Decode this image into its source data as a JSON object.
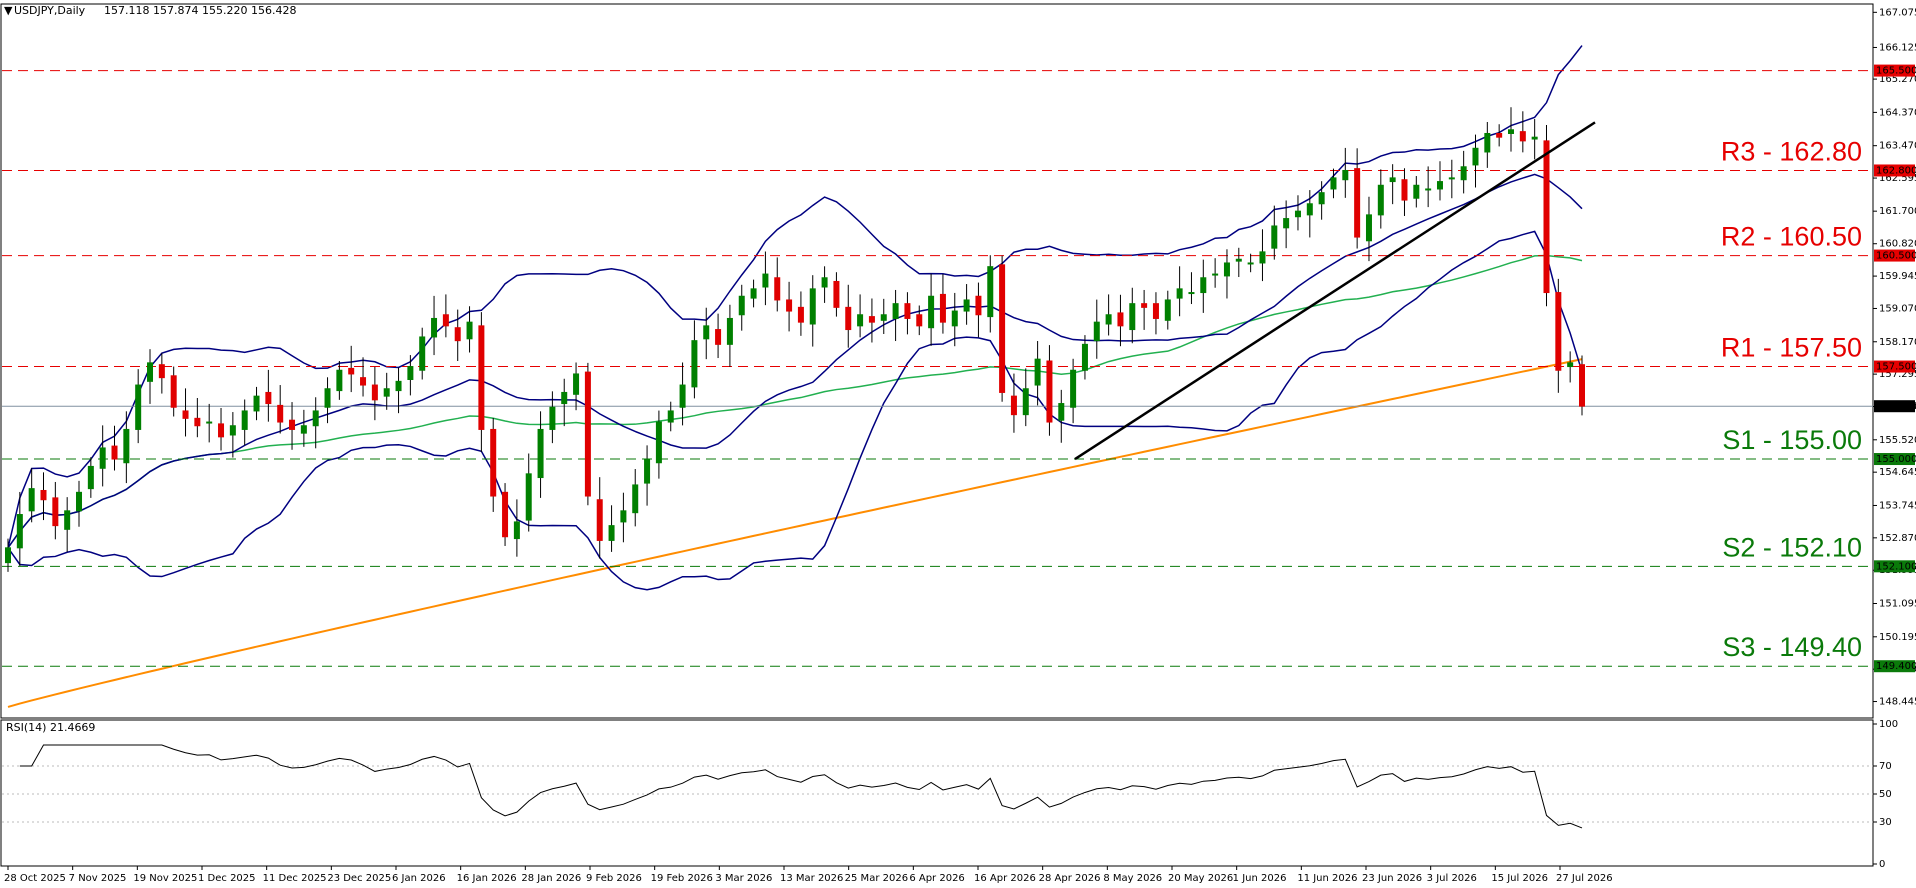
{
  "header": {
    "symbol_period": "USDJPY,Daily",
    "ohlc": "157.118 157.874 155.220 156.428"
  },
  "rsi_header": "RSI(14) 21.4669",
  "colors": {
    "resistance": "#e60000",
    "support": "#0a7a0a",
    "bollinger": "#000080",
    "ma_green": "#22b050",
    "ma_orange": "#ff8c00",
    "trendline": "#000000",
    "candle_up": "#008000",
    "candle_down": "#e00000",
    "current_price_line": "#8090a0"
  },
  "chart_data": [
    {
      "type": "candlestick",
      "title": "USDJPY,Daily",
      "ylim": [
        148.0,
        167.3
      ],
      "y_ticks": [
        "167.075",
        "166.125",
        "165.270",
        "164.370",
        "163.470",
        "162.595",
        "161.700",
        "160.820",
        "159.945",
        "159.070",
        "158.170",
        "157.295",
        "156.420",
        "155.520",
        "154.645",
        "153.745",
        "152.870",
        "151.995",
        "151.095",
        "150.195",
        "149.320",
        "148.445"
      ],
      "x_tick_labels": [
        "28 Oct 2025",
        "7 Nov 2025",
        "19 Nov 2025",
        "1 Dec 2025",
        "11 Dec 2025",
        "23 Dec 2025",
        "6 Jan 2026",
        "16 Jan 2026",
        "28 Jan 2026",
        "9 Feb 2026",
        "19 Feb 2026",
        "3 Mar 2026",
        "13 Mar 2026",
        "25 Mar 2026",
        "6 Apr 2026",
        "16 Apr 2026",
        "28 Apr 2026",
        "8 May 2026",
        "20 May 2026",
        "1 Jun 2026",
        "11 Jun 2026",
        "23 Jun 2026",
        "3 Jul 2026",
        "15 Jul 2026",
        "27 Jul 2026"
      ],
      "close_series": [
        152.6,
        153.5,
        154.2,
        153.9,
        153.2,
        153.6,
        154.1,
        154.8,
        155.3,
        155.0,
        155.8,
        157.0,
        157.6,
        157.2,
        156.4,
        156.1,
        155.9,
        156.0,
        155.6,
        155.9,
        156.3,
        156.7,
        156.5,
        156.0,
        155.8,
        155.9,
        156.3,
        156.9,
        157.4,
        157.3,
        157.0,
        156.6,
        156.9,
        157.1,
        157.5,
        158.3,
        158.8,
        158.6,
        158.2,
        158.7,
        155.8,
        154.0,
        152.9,
        153.3,
        154.6,
        155.8,
        156.4,
        156.8,
        157.3,
        154.0,
        152.8,
        153.2,
        153.6,
        154.3,
        155.0,
        156.0,
        156.3,
        157.0,
        158.2,
        158.6,
        158.1,
        158.8,
        159.4,
        159.6,
        160.0,
        159.3,
        159.0,
        158.7,
        159.6,
        159.9,
        159.1,
        158.5,
        158.9,
        158.7,
        158.9,
        159.2,
        158.8,
        158.6,
        159.4,
        158.7,
        159.0,
        159.3,
        158.9,
        160.2,
        156.8,
        156.2,
        156.9,
        157.7,
        156.0,
        156.5,
        157.4,
        158.1,
        158.7,
        158.9,
        158.6,
        159.2,
        159.1,
        158.8,
        159.3,
        159.6,
        159.5,
        159.9,
        160.0,
        160.3,
        160.4,
        160.3,
        160.6,
        161.3,
        161.5,
        161.7,
        161.9,
        162.2,
        162.6,
        162.8,
        161.0,
        161.6,
        162.4,
        162.6,
        162.0,
        162.4,
        162.3,
        162.5,
        162.6,
        162.9,
        163.4,
        163.8,
        163.7,
        163.9,
        163.6,
        163.7,
        159.5,
        157.4,
        157.6,
        156.43
      ],
      "levels": [
        {
          "name": "R3",
          "price": 162.8,
          "label": "R3 - 162.80",
          "tag": "162.800",
          "kind": "resistance"
        },
        {
          "name": "R2",
          "price": 160.5,
          "label": "R2 - 160.50",
          "tag": "160.500",
          "kind": "resistance"
        },
        {
          "name": "R1",
          "price": 157.5,
          "label": "R1 - 157.50",
          "tag": "157.500",
          "kind": "resistance"
        },
        {
          "name": "S1",
          "price": 155.0,
          "label": "S1 - 155.00",
          "tag": "155.000",
          "kind": "support"
        },
        {
          "name": "S2",
          "price": 152.1,
          "label": "S2 - 152.10",
          "tag": "152.100",
          "kind": "support"
        },
        {
          "name": "S3",
          "price": 149.4,
          "label": "S3 - 149.40",
          "tag": "149.400",
          "kind": "support"
        },
        {
          "name": "R4",
          "price": 165.5,
          "label": "",
          "tag": "165.500",
          "kind": "resistance"
        }
      ],
      "current_price": {
        "price": 156.428,
        "tag": "156.428"
      },
      "bollinger_bands": true,
      "moving_averages": [
        "green",
        "orange"
      ],
      "trendline": {
        "from": {
          "date": "8 May 2026",
          "price": 155.0
        },
        "to": {
          "date": "after 27 Jul 2026",
          "price": 164.1
        }
      }
    },
    {
      "type": "line",
      "title": "RSI(14) 21.4669",
      "ylim": [
        0,
        100
      ],
      "y_ticks": [
        "100",
        "70",
        "50",
        "30",
        "0"
      ],
      "levels": [
        70,
        50,
        30
      ]
    }
  ]
}
